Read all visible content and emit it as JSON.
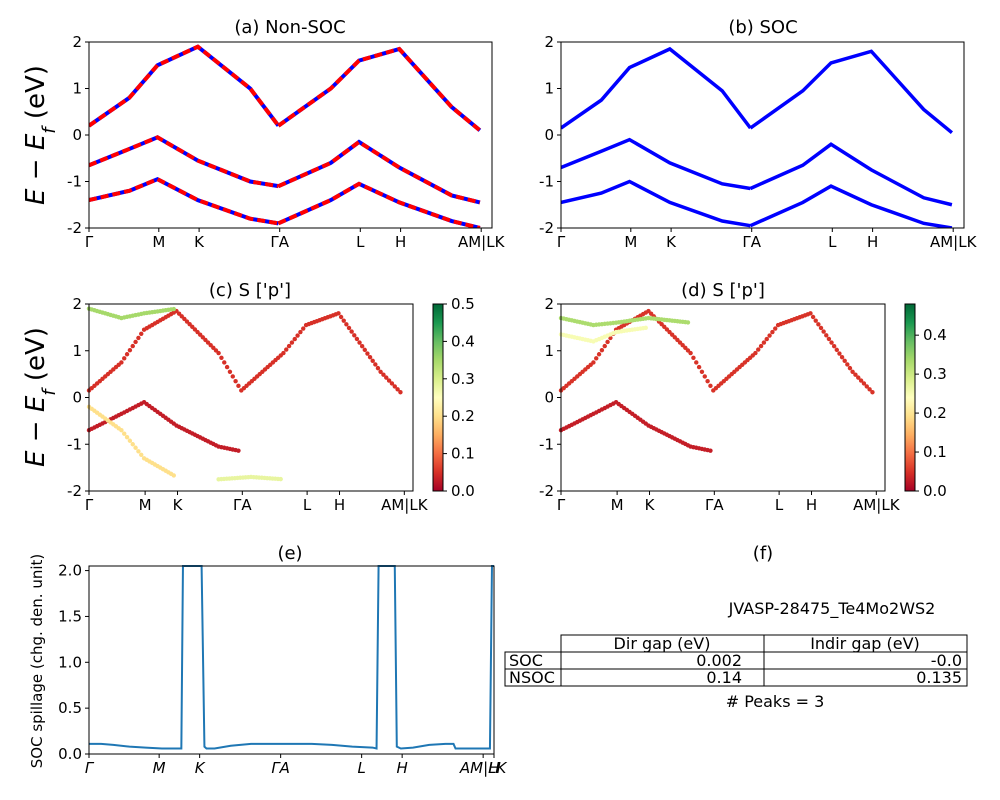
{
  "chart_data": [
    {
      "id": "a",
      "type": "line",
      "title": "(a) Non-SOC",
      "ylabel": "E − E_f (eV)",
      "xticks": [
        "Γ",
        "M",
        "K",
        "ΓA",
        "L",
        "H",
        "AM|LK"
      ],
      "xtick_positions": [
        0,
        0.1732,
        0.2732,
        0.4732,
        0.6732,
        0.7732,
        0.9732
      ],
      "ylim": [
        -2,
        2
      ],
      "yticks": [
        "-2",
        "-1",
        "0",
        "1",
        "2"
      ],
      "ytick_values": [
        -2,
        -1,
        0,
        1,
        2
      ],
      "colors": {
        "spin_up": "#0000ff",
        "spin_down": "#ff0000"
      },
      "series": [
        {
          "values": [
            [
              0,
              0.2
            ],
            [
              0.1,
              0.8
            ],
            [
              0.17,
              1.5
            ],
            [
              0.27,
              1.9
            ],
            [
              0.4,
              1.0
            ],
            [
              0.47,
              0.2
            ]
          ]
        },
        {
          "values": [
            [
              0.47,
              0.2
            ],
            [
              0.6,
              1.0
            ],
            [
              0.67,
              1.6
            ],
            [
              0.77,
              1.85
            ],
            [
              0.9,
              0.6
            ],
            [
              0.97,
              0.1
            ]
          ]
        },
        {
          "values": [
            [
              0,
              -0.65
            ],
            [
              0.1,
              -0.3
            ],
            [
              0.17,
              -0.05
            ],
            [
              0.27,
              -0.55
            ],
            [
              0.4,
              -1.0
            ],
            [
              0.47,
              -1.1
            ]
          ]
        },
        {
          "values": [
            [
              0.47,
              -1.1
            ],
            [
              0.6,
              -0.6
            ],
            [
              0.67,
              -0.15
            ],
            [
              0.77,
              -0.7
            ],
            [
              0.9,
              -1.3
            ],
            [
              0.97,
              -1.45
            ]
          ]
        },
        {
          "values": [
            [
              0,
              -1.4
            ],
            [
              0.1,
              -1.2
            ],
            [
              0.17,
              -0.95
            ],
            [
              0.27,
              -1.4
            ],
            [
              0.4,
              -1.8
            ],
            [
              0.47,
              -1.9
            ]
          ]
        },
        {
          "values": [
            [
              0.47,
              -1.9
            ],
            [
              0.6,
              -1.4
            ],
            [
              0.67,
              -1.05
            ],
            [
              0.77,
              -1.45
            ],
            [
              0.9,
              -1.85
            ],
            [
              0.97,
              -2.0
            ]
          ]
        }
      ]
    },
    {
      "id": "b",
      "type": "line",
      "title": "(b) SOC",
      "ylabel": "",
      "xticks": [
        "Γ",
        "M",
        "K",
        "ΓA",
        "L",
        "H",
        "AM|LK"
      ],
      "xtick_positions": [
        0,
        0.1732,
        0.2732,
        0.4732,
        0.6732,
        0.7732,
        0.9732
      ],
      "ylim": [
        -2,
        2
      ],
      "yticks": [
        "-2",
        "-1",
        "0",
        "1",
        "2"
      ],
      "ytick_values": [
        -2,
        -1,
        0,
        1,
        2
      ],
      "colors": {
        "line": "#0000ff"
      },
      "series": [
        {
          "values": [
            [
              0,
              0.15
            ],
            [
              0.1,
              0.75
            ],
            [
              0.17,
              1.45
            ],
            [
              0.27,
              1.85
            ],
            [
              0.4,
              0.95
            ],
            [
              0.47,
              0.15
            ]
          ]
        },
        {
          "values": [
            [
              0.47,
              0.15
            ],
            [
              0.6,
              0.95
            ],
            [
              0.67,
              1.55
            ],
            [
              0.77,
              1.8
            ],
            [
              0.9,
              0.55
            ],
            [
              0.97,
              0.05
            ]
          ]
        },
        {
          "values": [
            [
              0,
              -0.7
            ],
            [
              0.1,
              -0.35
            ],
            [
              0.17,
              -0.1
            ],
            [
              0.27,
              -0.6
            ],
            [
              0.4,
              -1.05
            ],
            [
              0.47,
              -1.15
            ]
          ]
        },
        {
          "values": [
            [
              0.47,
              -1.15
            ],
            [
              0.6,
              -0.65
            ],
            [
              0.67,
              -0.2
            ],
            [
              0.77,
              -0.75
            ],
            [
              0.9,
              -1.35
            ],
            [
              0.97,
              -1.5
            ]
          ]
        },
        {
          "values": [
            [
              0,
              -1.45
            ],
            [
              0.1,
              -1.25
            ],
            [
              0.17,
              -1.0
            ],
            [
              0.27,
              -1.45
            ],
            [
              0.4,
              -1.85
            ],
            [
              0.47,
              -1.95
            ]
          ]
        },
        {
          "values": [
            [
              0.47,
              -1.95
            ],
            [
              0.6,
              -1.45
            ],
            [
              0.67,
              -1.1
            ],
            [
              0.77,
              -1.5
            ],
            [
              0.9,
              -1.9
            ],
            [
              0.97,
              -2.0
            ]
          ]
        }
      ]
    },
    {
      "id": "c",
      "type": "scatter",
      "title": "(c)  S ['p']",
      "ylabel": "E − E_f (eV)",
      "xticks": [
        "Γ",
        "M",
        "K",
        "ΓA",
        "L",
        "H",
        "AM|LK"
      ],
      "xtick_positions": [
        0,
        0.1732,
        0.2732,
        0.4732,
        0.6732,
        0.7732,
        0.9732
      ],
      "ylim": [
        -2,
        2
      ],
      "yticks": [
        "-2",
        "-1",
        "0",
        "1",
        "2"
      ],
      "ytick_values": [
        -2,
        -1,
        0,
        1,
        2
      ],
      "colorbar": {
        "ticks": [
          "0.0",
          "0.1",
          "0.2",
          "0.3",
          "0.4",
          "0.5"
        ],
        "tick_values": [
          0,
          0.1,
          0.2,
          0.3,
          0.4,
          0.5
        ],
        "range": [
          0,
          0.5
        ],
        "cmap": "RdYlGn"
      },
      "series": [
        {
          "values": [
            [
              0,
              0.15
            ],
            [
              0.1,
              0.75
            ],
            [
              0.17,
              1.45
            ],
            [
              0.27,
              1.85
            ],
            [
              0.4,
              0.95
            ],
            [
              0.47,
              0.15
            ]
          ],
          "s": 0.05
        },
        {
          "values": [
            [
              0.47,
              0.15
            ],
            [
              0.6,
              0.95
            ],
            [
              0.67,
              1.55
            ],
            [
              0.77,
              1.8
            ],
            [
              0.9,
              0.55
            ],
            [
              0.97,
              0.05
            ]
          ],
          "s": 0.05
        },
        {
          "values": [
            [
              0,
              -0.7
            ],
            [
              0.1,
              -0.35
            ],
            [
              0.17,
              -0.1
            ],
            [
              0.27,
              -0.6
            ],
            [
              0.4,
              -1.05
            ],
            [
              0.47,
              -1.15
            ]
          ],
          "s": 0.03
        },
        {
          "values": [
            [
              0,
              1.9
            ],
            [
              0.1,
              1.7
            ],
            [
              0.17,
              1.8
            ],
            [
              0.27,
              1.9
            ]
          ],
          "s": 0.35
        },
        {
          "values": [
            [
              0,
              -0.2
            ],
            [
              0.1,
              -0.7
            ],
            [
              0.17,
              -1.3
            ],
            [
              0.27,
              -1.7
            ]
          ],
          "s": 0.2
        },
        {
          "values": [
            [
              0.4,
              -1.75
            ],
            [
              0.5,
              -1.7
            ],
            [
              0.6,
              -1.75
            ]
          ],
          "s": 0.28
        }
      ]
    },
    {
      "id": "d",
      "type": "scatter",
      "title": "(d) S ['p']",
      "ylabel": "",
      "xticks": [
        "Γ",
        "M",
        "K",
        "ΓA",
        "L",
        "H",
        "AM|LK"
      ],
      "xtick_positions": [
        0,
        0.1732,
        0.2732,
        0.4732,
        0.6732,
        0.7732,
        0.9732
      ],
      "ylim": [
        -2,
        2
      ],
      "yticks": [
        "-2",
        "-1",
        "0",
        "1",
        "2"
      ],
      "ytick_values": [
        -2,
        -1,
        0,
        1,
        2
      ],
      "colorbar": {
        "ticks": [
          "0.0",
          "0.1",
          "0.2",
          "0.3",
          "0.4"
        ],
        "tick_values": [
          0,
          0.1,
          0.2,
          0.3,
          0.4
        ],
        "range": [
          0,
          0.48
        ],
        "cmap": "RdYlGn"
      },
      "series": [
        {
          "values": [
            [
              0,
              0.15
            ],
            [
              0.1,
              0.75
            ],
            [
              0.17,
              1.45
            ],
            [
              0.27,
              1.85
            ],
            [
              0.4,
              0.95
            ],
            [
              0.47,
              0.15
            ]
          ],
          "s": 0.05
        },
        {
          "values": [
            [
              0.47,
              0.15
            ],
            [
              0.6,
              0.95
            ],
            [
              0.67,
              1.55
            ],
            [
              0.77,
              1.8
            ],
            [
              0.9,
              0.55
            ],
            [
              0.97,
              0.05
            ]
          ],
          "s": 0.05
        },
        {
          "values": [
            [
              0,
              -0.7
            ],
            [
              0.1,
              -0.35
            ],
            [
              0.17,
              -0.1
            ],
            [
              0.27,
              -0.6
            ],
            [
              0.4,
              -1.05
            ],
            [
              0.47,
              -1.15
            ]
          ],
          "s": 0.03
        },
        {
          "values": [
            [
              0,
              1.7
            ],
            [
              0.1,
              1.55
            ],
            [
              0.17,
              1.6
            ],
            [
              0.27,
              1.7
            ],
            [
              0.4,
              1.6
            ]
          ],
          "s": 0.33
        },
        {
          "values": [
            [
              0,
              1.35
            ],
            [
              0.1,
              1.2
            ],
            [
              0.17,
              1.4
            ],
            [
              0.27,
              1.5
            ]
          ],
          "s": 0.25
        }
      ]
    },
    {
      "id": "e",
      "type": "line",
      "title": "(e)",
      "ylabel": "SOC spillage (chg. den. unit)",
      "xticks": [
        "Γ",
        "M",
        "K",
        "ΓA",
        "L",
        "H",
        "AM|LK",
        "H"
      ],
      "xtick_positions": [
        0,
        0.1732,
        0.2732,
        0.4732,
        0.6732,
        0.7732,
        0.9732,
        1.0
      ],
      "ylim": [
        0,
        2.05
      ],
      "yticks": [
        "0.0",
        "0.5",
        "1.0",
        "1.5",
        "2.0"
      ],
      "ytick_values": [
        0,
        0.5,
        1.0,
        1.5,
        2.0
      ],
      "colors": {
        "line": "#1f77b4"
      },
      "x": [
        0,
        0.03,
        0.06,
        0.1,
        0.14,
        0.18,
        0.22,
        0.228,
        0.232,
        0.278,
        0.285,
        0.29,
        0.31,
        0.35,
        0.4,
        0.45,
        0.5,
        0.55,
        0.6,
        0.65,
        0.7,
        0.71,
        0.715,
        0.755,
        0.76,
        0.77,
        0.8,
        0.84,
        0.88,
        0.9,
        0.905,
        0.95,
        0.99,
        0.995,
        1.0
      ],
      "values": [
        0.11,
        0.11,
        0.1,
        0.08,
        0.07,
        0.06,
        0.06,
        0.06,
        2.05,
        2.05,
        0.08,
        0.06,
        0.06,
        0.09,
        0.11,
        0.11,
        0.11,
        0.11,
        0.1,
        0.08,
        0.07,
        0.06,
        2.05,
        2.05,
        0.08,
        0.06,
        0.07,
        0.1,
        0.11,
        0.11,
        0.06,
        0.06,
        0.06,
        2.05,
        2.05
      ]
    },
    {
      "id": "f",
      "type": "table",
      "title": "(f)",
      "caption": "JVASP-28475_Te4Mo2WS2",
      "columns": [
        "Dir gap (eV)",
        "Indir gap (eV)"
      ],
      "rows": [
        {
          "label": "SOC",
          "cells": [
            "0.002",
            "-0.0"
          ]
        },
        {
          "label": "NSOC",
          "cells": [
            "0.14",
            "0.135"
          ]
        }
      ],
      "footer": "# Peaks = 3"
    }
  ]
}
